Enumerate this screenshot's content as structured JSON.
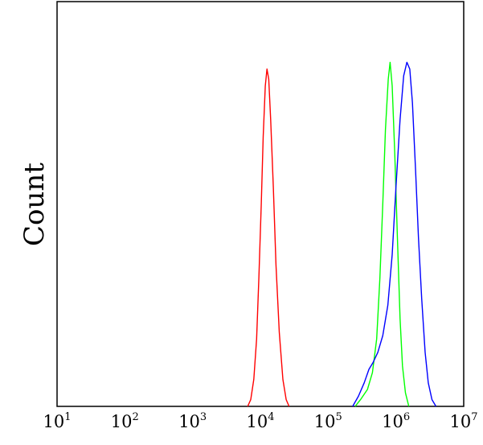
{
  "chart_data": {
    "type": "line",
    "title": "",
    "xlabel": "",
    "ylabel": "Count",
    "x_scale": "log",
    "xlim": [
      10,
      10000000
    ],
    "ylim": [
      0,
      1.2
    ],
    "grid": false,
    "legend": "none",
    "x_ticks": [
      {
        "base": "10",
        "exp": "1"
      },
      {
        "base": "10",
        "exp": "2"
      },
      {
        "base": "10",
        "exp": "3"
      },
      {
        "base": "10",
        "exp": "4"
      },
      {
        "base": "10",
        "exp": "5"
      },
      {
        "base": "10",
        "exp": "6"
      },
      {
        "base": "10",
        "exp": "7"
      }
    ],
    "series": [
      {
        "color": "#ff0000",
        "points": [
          [
            6500,
            0
          ],
          [
            7200,
            0.02
          ],
          [
            8000,
            0.08
          ],
          [
            8800,
            0.2
          ],
          [
            9500,
            0.38
          ],
          [
            10300,
            0.6
          ],
          [
            11000,
            0.8
          ],
          [
            11800,
            0.95
          ],
          [
            12500,
            1.0
          ],
          [
            13300,
            0.97
          ],
          [
            14200,
            0.85
          ],
          [
            15500,
            0.65
          ],
          [
            17000,
            0.42
          ],
          [
            19000,
            0.22
          ],
          [
            21500,
            0.08
          ],
          [
            24000,
            0.02
          ],
          [
            26500,
            0
          ]
        ]
      },
      {
        "color": "#00ff00",
        "points": [
          [
            250000,
            0
          ],
          [
            300000,
            0.02
          ],
          [
            380000,
            0.05
          ],
          [
            450000,
            0.1
          ],
          [
            520000,
            0.2
          ],
          [
            580000,
            0.38
          ],
          [
            640000,
            0.6
          ],
          [
            700000,
            0.82
          ],
          [
            770000,
            0.97
          ],
          [
            820000,
            1.02
          ],
          [
            880000,
            0.95
          ],
          [
            960000,
            0.75
          ],
          [
            1050000,
            0.5
          ],
          [
            1150000,
            0.26
          ],
          [
            1250000,
            0.12
          ],
          [
            1380000,
            0.04
          ],
          [
            1550000,
            0
          ]
        ]
      },
      {
        "color": "#0000ff",
        "points": [
          [
            230000,
            0
          ],
          [
            280000,
            0.03
          ],
          [
            340000,
            0.07
          ],
          [
            400000,
            0.11
          ],
          [
            460000,
            0.13
          ],
          [
            540000,
            0.16
          ],
          [
            640000,
            0.21
          ],
          [
            760000,
            0.3
          ],
          [
            880000,
            0.45
          ],
          [
            1000000,
            0.65
          ],
          [
            1150000,
            0.85
          ],
          [
            1300000,
            0.98
          ],
          [
            1450000,
            1.02
          ],
          [
            1600000,
            1.0
          ],
          [
            1750000,
            0.9
          ],
          [
            1950000,
            0.7
          ],
          [
            2150000,
            0.5
          ],
          [
            2400000,
            0.32
          ],
          [
            2700000,
            0.16
          ],
          [
            3000000,
            0.07
          ],
          [
            3400000,
            0.02
          ],
          [
            3900000,
            0
          ]
        ]
      }
    ]
  }
}
